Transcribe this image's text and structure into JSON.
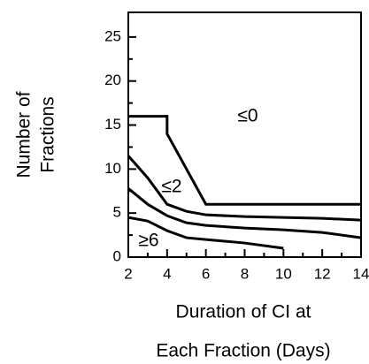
{
  "chart_data": {
    "type": "line",
    "ylabel": [
      "Number of",
      "Fractions"
    ],
    "xlabel": [
      "Duration of CI at",
      "Each Fraction (Days)"
    ],
    "xlim": [
      2,
      14
    ],
    "ylim": [
      0,
      27.8
    ],
    "xticks": [
      2,
      4,
      6,
      8,
      10,
      12,
      14
    ],
    "yticks": [
      0,
      5,
      10,
      15,
      20,
      25
    ],
    "xminor": [
      3,
      5,
      7,
      9,
      11,
      13
    ],
    "yminor": [
      2.5,
      7.5,
      12.5,
      17.5,
      22.5
    ],
    "series": [
      {
        "color": "#000000",
        "x": [
          2,
          4,
          4,
          6,
          14
        ],
        "values": [
          16,
          16,
          14,
          6,
          6
        ]
      },
      {
        "color": "#000000",
        "x": [
          2,
          3,
          4,
          5,
          6,
          8,
          10,
          12,
          14
        ],
        "values": [
          11.5,
          9,
          6,
          5.2,
          4.8,
          4.6,
          4.5,
          4.4,
          4.2
        ]
      },
      {
        "color": "#000000",
        "x": [
          2,
          3,
          4,
          5,
          6,
          8,
          10,
          12,
          14
        ],
        "values": [
          7.8,
          6,
          4.7,
          3.9,
          3.6,
          3.3,
          3.1,
          2.8,
          2.2
        ]
      },
      {
        "color": "#000000",
        "x": [
          2,
          3,
          4,
          5,
          6,
          8,
          10
        ],
        "values": [
          4.5,
          4.1,
          3,
          2.2,
          2,
          1.6,
          1
        ]
      }
    ],
    "annotations": [
      "≤0",
      "≤2",
      "≥6"
    ]
  }
}
